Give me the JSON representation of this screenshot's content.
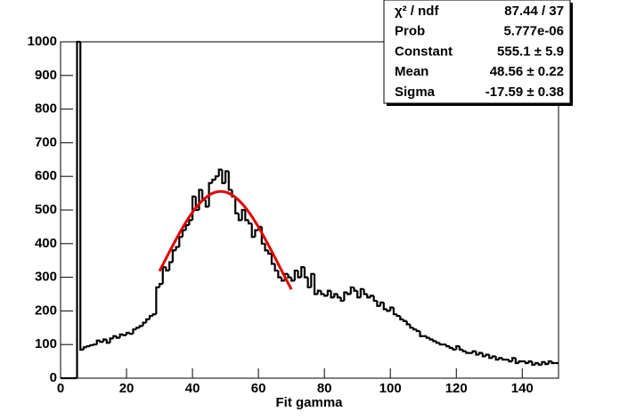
{
  "chart_data": {
    "type": "histogram",
    "x_label": "Fit gamma",
    "bins": [
      0,
      1,
      2,
      3,
      4,
      5,
      6,
      7,
      8,
      9,
      10,
      11,
      12,
      13,
      14,
      15,
      16,
      17,
      18,
      19,
      20,
      21,
      22,
      23,
      24,
      25,
      26,
      27,
      28,
      29,
      30,
      31,
      32,
      33,
      34,
      35,
      36,
      37,
      38,
      39,
      40,
      41,
      42,
      43,
      44,
      45,
      46,
      47,
      48,
      49,
      50,
      51,
      52,
      53,
      54,
      55,
      56,
      57,
      58,
      59,
      60,
      61,
      62,
      63,
      64,
      65,
      66,
      67,
      68,
      69,
      70,
      71,
      72,
      73,
      74,
      75,
      76,
      77,
      78,
      79,
      80,
      81,
      82,
      83,
      84,
      85,
      86,
      87,
      88,
      89,
      90,
      91,
      92,
      93,
      94,
      95,
      96,
      97,
      98,
      99,
      100,
      101,
      102,
      103,
      104,
      105,
      106,
      107,
      108,
      109,
      110,
      111,
      112,
      113,
      114,
      115,
      116,
      117,
      118,
      119,
      120,
      121,
      122,
      123,
      124,
      125,
      126,
      127,
      128,
      129,
      130,
      131,
      132,
      133,
      134,
      135,
      136,
      137,
      138,
      139,
      140,
      141,
      142,
      143,
      144,
      145,
      146,
      147,
      148,
      149,
      150,
      151
    ],
    "values": [
      0,
      0,
      0,
      0,
      0,
      1000,
      85,
      92,
      95,
      98,
      100,
      112,
      108,
      115,
      105,
      118,
      125,
      120,
      130,
      128,
      135,
      132,
      145,
      150,
      155,
      165,
      175,
      185,
      190,
      270,
      280,
      330,
      320,
      345,
      380,
      390,
      420,
      440,
      455,
      470,
      540,
      500,
      560,
      530,
      510,
      580,
      590,
      600,
      620,
      580,
      615,
      560,
      540,
      490,
      470,
      500,
      470,
      460,
      420,
      440,
      450,
      400,
      380,
      370,
      340,
      320,
      300,
      290,
      310,
      300,
      290,
      320,
      300,
      330,
      300,
      270,
      310,
      250,
      260,
      250,
      245,
      260,
      240,
      250,
      240,
      230,
      255,
      250,
      270,
      260,
      240,
      265,
      250,
      240,
      245,
      230,
      215,
      225,
      205,
      200,
      210,
      190,
      185,
      175,
      170,
      160,
      150,
      145,
      140,
      125,
      125,
      120,
      115,
      110,
      105,
      100,
      100,
      95,
      90,
      85,
      95,
      85,
      80,
      75,
      75,
      80,
      70,
      75,
      65,
      70,
      60,
      65,
      55,
      60,
      55,
      55,
      50,
      60,
      45,
      50,
      50,
      45,
      50,
      40,
      45,
      40,
      48,
      42,
      50,
      45,
      45
    ],
    "color": "#000000",
    "xlim": [
      0,
      151
    ],
    "xticks": [
      0,
      20,
      40,
      60,
      80,
      100,
      120,
      140
    ],
    "ylim": [
      0,
      1000
    ],
    "yticks": [
      0,
      100,
      200,
      300,
      400,
      500,
      600,
      700,
      800,
      900,
      1000
    ],
    "fit": {
      "color": "#e00000",
      "constant": 555.1,
      "mean": 48.56,
      "sigma": -17.59,
      "range": [
        30,
        70
      ]
    },
    "stats": [
      {
        "label": "χ² / ndf",
        "value": "87.44 / 37"
      },
      {
        "label": "Prob",
        "value": "5.777e-06"
      },
      {
        "label": "Constant",
        "value": "555.1 ± 5.9"
      },
      {
        "label": "Mean",
        "value": "48.56 ± 0.22"
      },
      {
        "label": "Sigma",
        "value": "-17.59 ± 0.38"
      }
    ]
  }
}
